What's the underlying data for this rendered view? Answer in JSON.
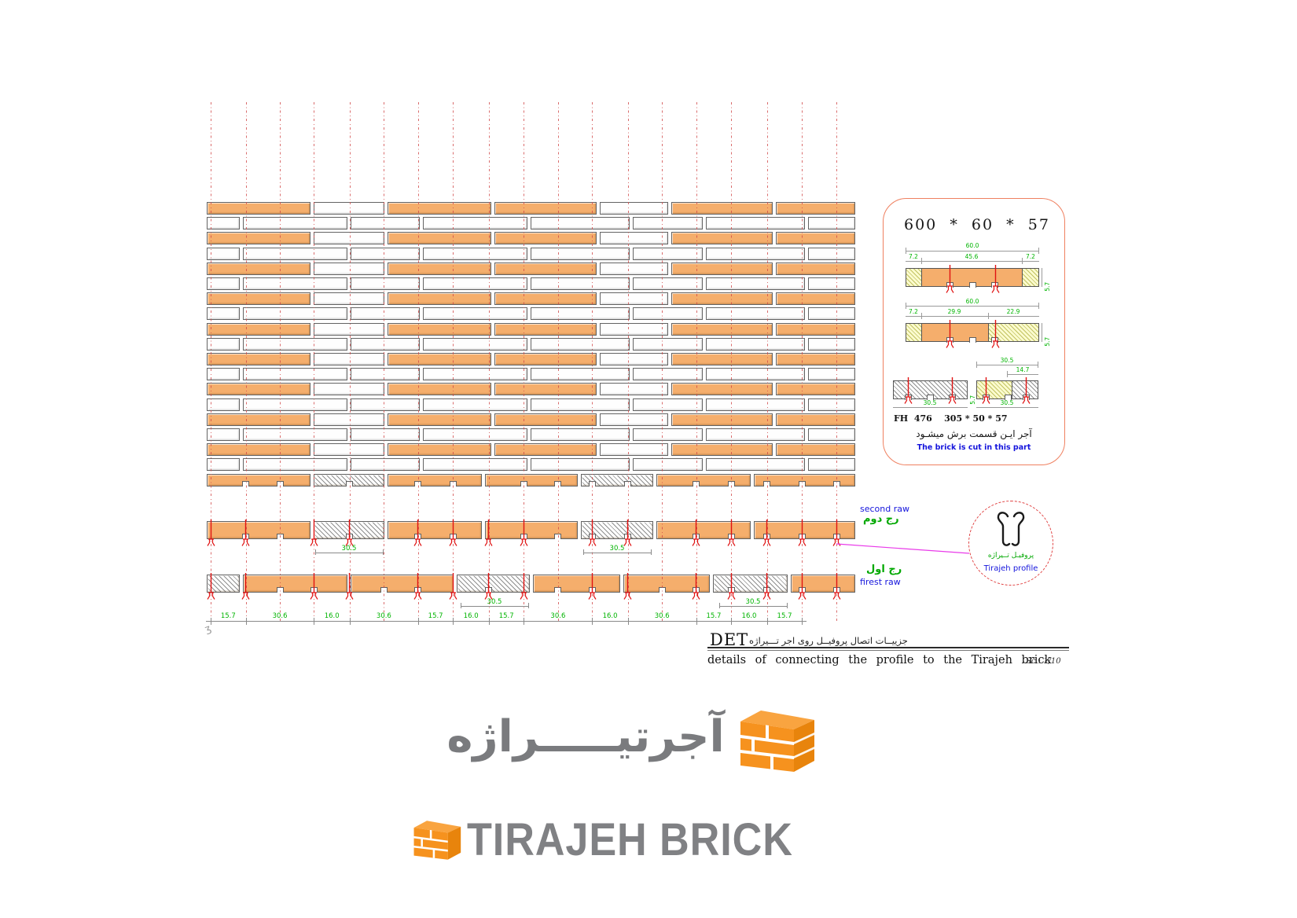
{
  "colors": {
    "brick_orange": "#F5AE6C",
    "construction_red": "#D04848",
    "dim_green": "#00B400",
    "label_blue": "#1414DC",
    "magenta_leader": "#E93BE9",
    "panel_border": "#EF8060",
    "clip_red": "#E01212",
    "logo_gray": "#7A7B7E",
    "logo_orange": "#F6921E"
  },
  "wall": {
    "patterns": {
      "A": [
        [
          125,
          "o"
        ],
        [
          85,
          "w"
        ],
        [
          125,
          "o"
        ],
        [
          122,
          "o"
        ],
        [
          83,
          "w"
        ],
        [
          122,
          "o"
        ],
        [
          95,
          "o"
        ]
      ],
      "B": [
        [
          40,
          "w"
        ],
        [
          126,
          "w"
        ],
        [
          84,
          "w"
        ],
        [
          126,
          "w"
        ],
        [
          120,
          "w"
        ],
        [
          84,
          "w"
        ],
        [
          120,
          "w"
        ],
        [
          57,
          "w"
        ]
      ],
      "C": [
        [
          125,
          "o"
        ],
        [
          85,
          "h"
        ],
        [
          113,
          "o"
        ],
        [
          112,
          "o"
        ],
        [
          87,
          "h"
        ],
        [
          113,
          "o"
        ],
        [
          122,
          "o"
        ]
      ],
      "F": [
        [
          40,
          "h"
        ],
        [
          126,
          "o"
        ],
        [
          125,
          "o"
        ],
        [
          88,
          "h"
        ],
        [
          105,
          "o"
        ],
        [
          105,
          "o"
        ],
        [
          90,
          "h"
        ],
        [
          78,
          "o"
        ]
      ]
    },
    "sequence": [
      "A",
      "B",
      "A",
      "B",
      "A",
      "B",
      "A",
      "B",
      "A",
      "B",
      "A",
      "B",
      "A",
      "B",
      "A",
      "B",
      "A",
      "B",
      "C"
    ]
  },
  "dim_line": {
    "segments": [
      "15.7",
      "30.6",
      "16.0",
      "30.6",
      "15.7",
      "16.0",
      "15.7",
      "30.6",
      "16.0",
      "30.6",
      "15.7",
      "16.0",
      "15.7"
    ]
  },
  "cut_dim_label": "30.5",
  "row_labels": {
    "second_en": "second raw",
    "second_fa": "رج دوم",
    "first_fa": "رج اول",
    "first_en": "firest raw"
  },
  "profile_circle": {
    "fa": "پروفيـل تــيراژه",
    "en": "Tirajeh profile"
  },
  "detail_panel": {
    "title": "600  *  60  *  57",
    "s1": {
      "total": "60.0",
      "a": "7.2",
      "b": "45.6",
      "c": "7.2",
      "h": "5.7"
    },
    "s2": {
      "total": "60.0",
      "a": "7.2",
      "b": "29.9",
      "c": "22.9",
      "h": "5.7"
    },
    "s3": {
      "w1": "30.5",
      "w2": "14.7",
      "below1": "30.5",
      "below2": "30.5",
      "h": "5.7",
      "label": "FH  476    305 * 50 * 57"
    },
    "caption_fa": "آجر ایـن قسمت برش  میشـود",
    "caption_en": "The brick is cut in this part"
  },
  "title_block": {
    "det": "DET",
    "fa": "جزییــات اتصال پروفیــل  روی اجر تـــیراژه",
    "en": "details  of  connecting  the  profile  to  the Tirajeh  brick",
    "scale": "Sc : 1/10"
  },
  "logo": {
    "fa": "آجرتیـــــراژه",
    "en": "TIRAJEH BRICK"
  }
}
